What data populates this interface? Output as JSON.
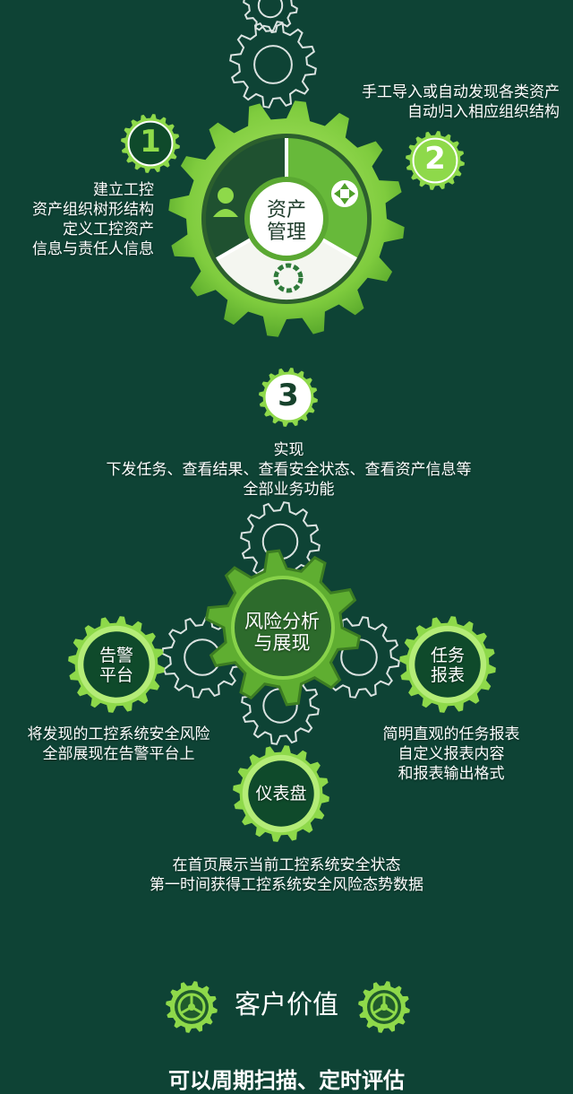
{
  "asset_section": {
    "step1_number": "1",
    "step2_number": "2",
    "step3_number": "3",
    "step1_lines": [
      "建立工控",
      "资产组织树形结构",
      "定义工控资产",
      "信息与责任人信息"
    ],
    "step2_lines": [
      "手工导入或自动发现各类资产",
      "自动归入相应组织结构"
    ],
    "step3_lines": [
      "实现",
      "下发任务、查看结果、查看安全状态、查看资产信息等",
      "全部业务功能"
    ],
    "hub_lines": [
      "资产",
      "管理"
    ]
  },
  "risk_section": {
    "hub_lines": [
      "风险分析",
      "与展现"
    ],
    "alarm_lines": [
      "告警",
      "平台"
    ],
    "alarm_desc_lines": [
      "将发现的工控系统安全风险",
      "全部展现在告警平台上"
    ],
    "report_lines": [
      "任务",
      "报表"
    ],
    "report_desc_lines": [
      "简明直观的任务报表",
      "自定义报表内容",
      "和报表输出格式"
    ],
    "dashboard_label": "仪表盘",
    "dashboard_desc_lines": [
      "在首页展示当前工控系统安全状态",
      "第一时间获得工控系统安全风险态势数据"
    ]
  },
  "customer_value": {
    "title": "客户价值",
    "partial_line": "可以周期扫描、定时评估"
  },
  "icons": [
    "user-check-icon",
    "move-arrows-icon",
    "cycle-arrows-icon",
    "gear-icon"
  ],
  "colors": {
    "background": "#0e4335",
    "gear_light": "#8ed94a",
    "gear_dark": "#4fa32c",
    "outline": "#ffffff"
  }
}
